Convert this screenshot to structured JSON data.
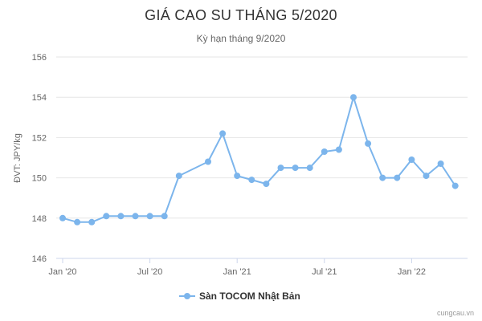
{
  "chart_data": {
    "type": "line",
    "title": "GIÁ CAO SU THÁNG 5/2020",
    "subtitle": "Kỳ hạn tháng 9/2020",
    "ylabel": "ĐVT: JPY/kg",
    "xlabel": "",
    "ylim": [
      146,
      156
    ],
    "y_ticks": [
      "146",
      "148",
      "150",
      "152",
      "154",
      "156"
    ],
    "x_range": [
      0,
      28
    ],
    "x_ticks": [
      {
        "label": "Jan '20",
        "x": 0
      },
      {
        "label": "Jul '20",
        "x": 6
      },
      {
        "label": "Jan '21",
        "x": 12
      },
      {
        "label": "Jul '21",
        "x": 18
      },
      {
        "label": "Jan '22",
        "x": 24
      }
    ],
    "grid": true,
    "legend_position": "bottom-center",
    "series": [
      {
        "name": "Sàn TOCOM Nhật Bản",
        "color": "#7cb5ec",
        "x": [
          0,
          1,
          2,
          3,
          4,
          5,
          6,
          7,
          8,
          10,
          11,
          12,
          13,
          14,
          15,
          16,
          17,
          18,
          19,
          20,
          21,
          22,
          23,
          24,
          25,
          26,
          27
        ],
        "values": [
          148.0,
          147.8,
          147.8,
          148.1,
          148.1,
          148.1,
          148.1,
          148.1,
          150.1,
          150.8,
          152.2,
          150.1,
          149.9,
          149.7,
          150.5,
          150.5,
          150.5,
          151.3,
          151.4,
          154.0,
          151.7,
          150.0,
          150.0,
          150.9,
          150.1,
          150.7,
          149.6
        ]
      }
    ]
  },
  "credit": "cungcau.vn"
}
